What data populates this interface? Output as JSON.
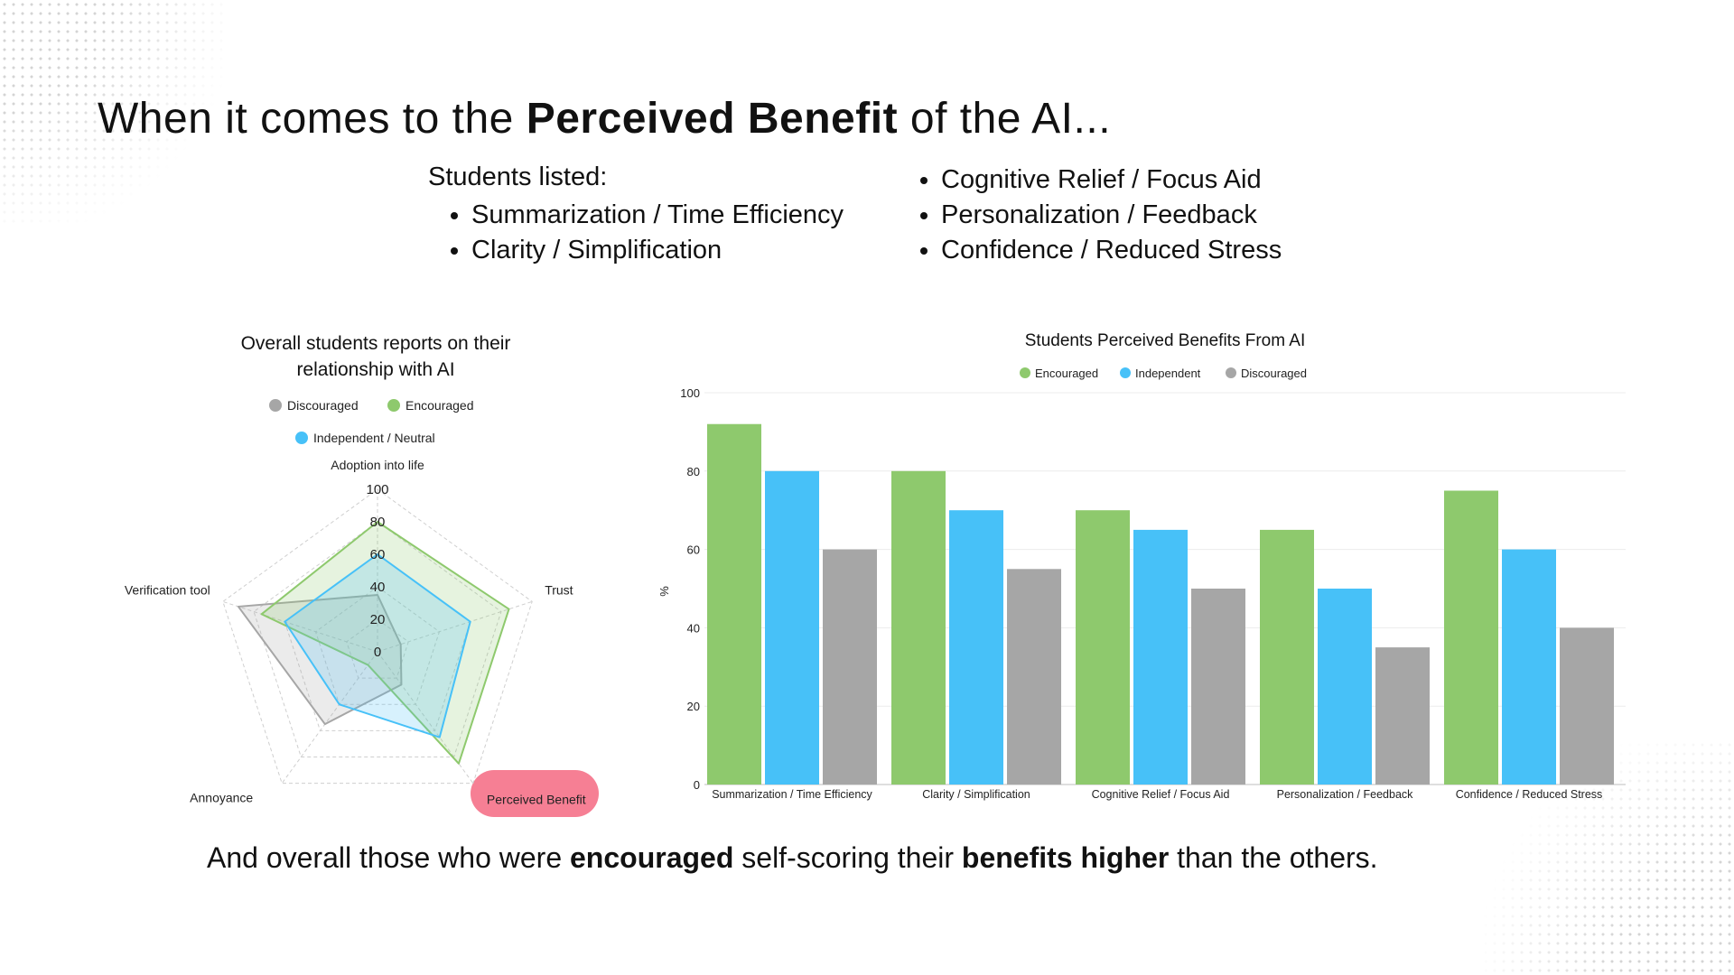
{
  "heading": {
    "prefix": "When it comes to the ",
    "bold": "Perceived Benefit",
    "suffix": " of the AI..."
  },
  "students_list": {
    "intro": "Students listed:",
    "items_left": [
      "Summarization / Time Efficiency",
      "Clarity / Simplification"
    ],
    "items_right": [
      "Cognitive Relief / Focus Aid",
      "Personalization / Feedback",
      "Confidence / Reduced Stress"
    ]
  },
  "footer": {
    "part1": "And overall those who were ",
    "bold1": "encouraged",
    "part2": " self-scoring their ",
    "bold2": "benefits higher",
    "part3": " than the others."
  },
  "colors": {
    "encouraged": "#8ec96d",
    "independent": "#47c1f8",
    "discouraged": "#a6a6a6",
    "highlight": "#f67f94"
  },
  "chart_data": [
    {
      "type": "radar",
      "title": "Overall students reports on their relationship with AI",
      "axes": [
        "Adoption into life",
        "Trust",
        "Perceived Benefit",
        "Annoyance",
        "Verification tool"
      ],
      "highlighted_axis": "Perceived Benefit",
      "rlim": [
        0,
        100
      ],
      "ticks": [
        0,
        20,
        40,
        60,
        80,
        100
      ],
      "series": [
        {
          "name": "Discouraged",
          "color": "#a6a6a6",
          "values": [
            35,
            15,
            25,
            55,
            90
          ]
        },
        {
          "name": "Encouraged",
          "color": "#8ec96d",
          "values": [
            80,
            85,
            85,
            10,
            75
          ]
        },
        {
          "name": "Independent / Neutral",
          "color": "#47c1f8",
          "values": [
            60,
            60,
            65,
            40,
            60
          ]
        }
      ],
      "legend": [
        "Discouraged",
        "Encouraged",
        "Independent / Neutral"
      ]
    },
    {
      "type": "bar",
      "title": "Students Perceived Benefits From AI",
      "categories": [
        "Summarization / Time Efficiency",
        "Clarity / Simplification",
        "Cognitive Relief / Focus Aid",
        "Personalization / Feedback",
        "Confidence / Reduced Stress"
      ],
      "series": [
        {
          "name": "Encouraged",
          "color": "#8ec96d",
          "values": [
            92,
            80,
            70,
            65,
            75
          ]
        },
        {
          "name": "Independent",
          "color": "#47c1f8",
          "values": [
            80,
            70,
            65,
            50,
            60
          ]
        },
        {
          "name": "Discouraged",
          "color": "#a6a6a6",
          "values": [
            60,
            55,
            50,
            35,
            40
          ]
        }
      ],
      "xlabel": "",
      "ylabel": "%",
      "ylim": [
        0,
        100
      ],
      "yticks": [
        0,
        20,
        40,
        60,
        80,
        100
      ]
    }
  ]
}
